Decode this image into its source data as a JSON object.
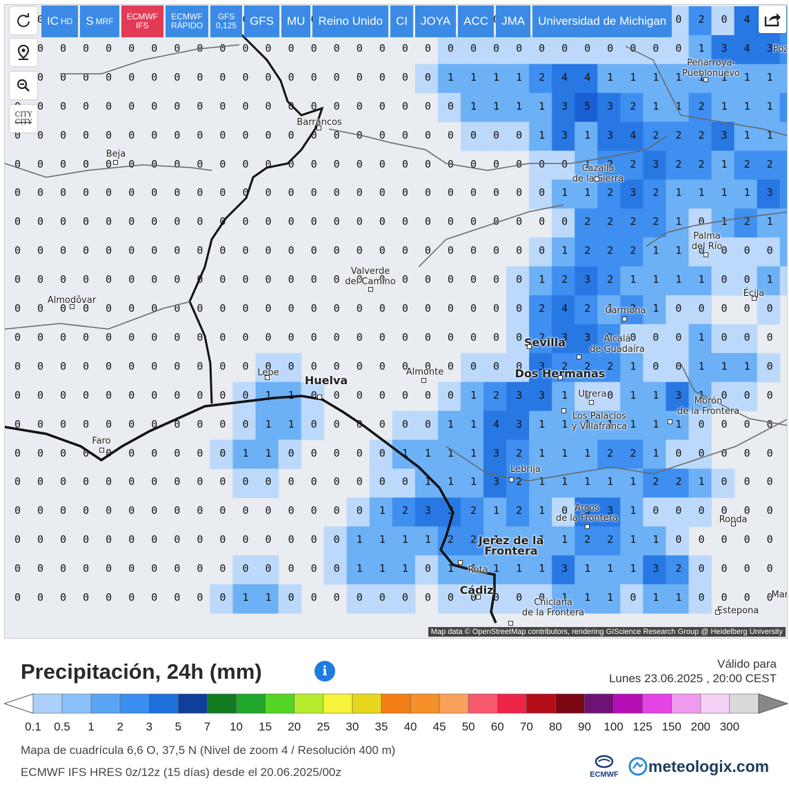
{
  "toolbar": {
    "models": [
      {
        "label": "IC",
        "sub": "HD",
        "active": false
      },
      {
        "label": "S",
        "sub": "MRF",
        "active": false
      },
      {
        "label": "ECMWF\nIFS",
        "small": true,
        "active": true
      },
      {
        "label": "ECMWF\nRÁPIDO",
        "small": true,
        "active": false
      },
      {
        "label": "GFS\n0,125",
        "small": true,
        "active": false
      },
      {
        "label": "GFS",
        "active": false
      },
      {
        "label": "MU",
        "active": false
      },
      {
        "label": "Reino Unido",
        "active": false
      },
      {
        "label": "CI",
        "active": false
      },
      {
        "label": "JOYA",
        "active": false
      },
      {
        "label": "ACC",
        "active": false
      },
      {
        "label": "JMA",
        "active": false
      },
      {
        "label": "Universidad de Michigan",
        "active": false
      }
    ],
    "city_toggle": "CITY"
  },
  "map": {
    "attribution": "Map data © OpenStreetMap contributors, rendering GIScience Research Group @ Heidelberg University",
    "places": [
      {
        "name": "Peñarroya-\nPueblonuevo"
      },
      {
        "name": "Barrancos"
      },
      {
        "name": "Beja"
      },
      {
        "name": "Cazalla\nde la Sierra"
      },
      {
        "name": "Palma\ndel Río"
      },
      {
        "name": "Valverde\ndel Camino"
      },
      {
        "name": "Almodôvar"
      },
      {
        "name": "Écija"
      },
      {
        "name": "Carmona"
      },
      {
        "name": "Sevilla"
      },
      {
        "name": "Alcalá\nde Guadaíra"
      },
      {
        "name": "Lepe"
      },
      {
        "name": "Huelva"
      },
      {
        "name": "Almonte"
      },
      {
        "name": "Dos Hermanas"
      },
      {
        "name": "Utrera"
      },
      {
        "name": "Morón\nde la Frontera"
      },
      {
        "name": "Los Palacios\ny Villafranca"
      },
      {
        "name": "Faro"
      },
      {
        "name": "Lebrija"
      },
      {
        "name": "Arcos\nde la Frontera"
      },
      {
        "name": "Ronda"
      },
      {
        "name": "Jerez de la\nFrontera"
      },
      {
        "name": "Rota"
      },
      {
        "name": "Cádiz"
      },
      {
        "name": "Chiclana\nde la Frontera"
      },
      {
        "name": "Estepona"
      },
      {
        "name": "Poz"
      },
      {
        "name": "Mar"
      }
    ],
    "grid": [
      "00000000000000000000000000001020442323112210000",
      "00000000000000000000000000000013432211111000100",
      "00000000000000000001111244111111111000000000000",
      "00000000000000000000111135321121112100000000000",
      "00000000000000000000000131342223111010000000001",
      "00000000000000000000000001223221222121000000000",
      "00000000000000000000000011232111132101100000000",
      "00000000000000000000000002222101211000000000000",
      "00000000000000000000000012221100001000000000000",
      "00000000000000000000000123211110010000000000000",
      "00000000000000000000000242121000000000000000000",
      "00000000000000000000000233200010000000000000000",
      "00000000000000000000000322210011100000000000000",
      "00000000000110000000123310011310000000000000000",
      "00000000000110000001143111111100000000000000000",
      "00000000001100000111132111221000000000000000000",
      "00000000000000000011132111112210000000000000000",
      "00000000000000001233212103310000000000000000000",
      "00000000000000011112211112211000000000000000000",
      "00000000000000011101111131113200000000000000000",
      "00000000001100000000000011101100000000000000000"
    ]
  },
  "legend": {
    "title": "Precipitación, 24h (mm)",
    "valid_label": "Válido para",
    "valid_time": "Lunes 23.06.2025 , 20:00 CEST",
    "ticks": [
      "0.1",
      "0.5",
      "1",
      "2",
      "3",
      "5",
      "7",
      "10",
      "15",
      "20",
      "25",
      "30",
      "35",
      "40",
      "45",
      "50",
      "60",
      "70",
      "80",
      "90",
      "100",
      "125",
      "150",
      "200",
      "300"
    ],
    "colors": [
      "#aad0fb",
      "#8cc0f8",
      "#5aa5f3",
      "#3a8ef0",
      "#1f6fdd",
      "#0e3f9b",
      "#147a22",
      "#1fa82b",
      "#55d424",
      "#b6ec2c",
      "#f7f23a",
      "#e7d61c",
      "#f37f16",
      "#f58f2a",
      "#f9a25c",
      "#f7596f",
      "#ed2448",
      "#b30d18",
      "#7a0712",
      "#6e1276",
      "#b50fb5",
      "#e543e5",
      "#f09af0",
      "#f5d2f5",
      "#d9d9d9"
    ]
  },
  "footer": {
    "grid_info": "Mapa de cuadrícula 6,6 O, 37,5 N (Nivel de zoom 4 / Resolución 400 m)",
    "model_info": "ECMWF IFS HRES 0z/12z (15 días) desde el 20.06.2025/00z",
    "brand_ecmwf": "ECMWF",
    "brand_meteologix": "meteologix.com"
  }
}
